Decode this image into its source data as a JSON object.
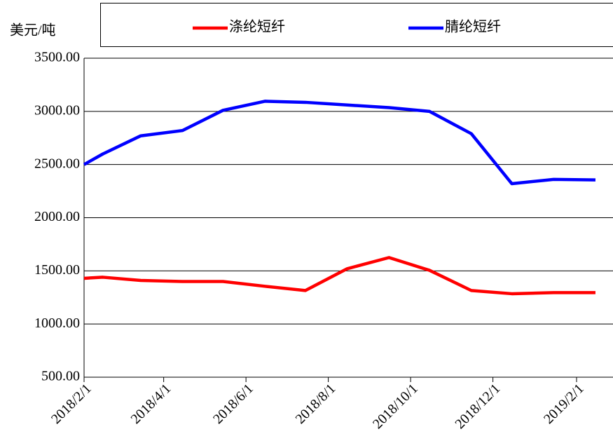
{
  "chart_data": {
    "type": "line",
    "y_label": "美元/吨",
    "x": [
      "2018/2/1",
      "2018/2/15",
      "2018/3/15",
      "2018/4/15",
      "2018/5/15",
      "2018/6/15",
      "2018/7/15",
      "2018/8/15",
      "2018/9/15",
      "2018/10/15",
      "2018/11/15",
      "2018/12/15",
      "2019/1/15",
      "2019/2/15"
    ],
    "series": [
      {
        "name": "涤纶短纤",
        "color": "#ff0000",
        "values": [
          1430,
          1440,
          1410,
          1400,
          1400,
          1355,
          1315,
          1520,
          1625,
          1505,
          1315,
          1285,
          1295,
          1295
        ]
      },
      {
        "name": "腈纶短纤",
        "color": "#0000ff",
        "values": [
          2500,
          2600,
          2770,
          2820,
          3010,
          3095,
          3085,
          3060,
          3035,
          3000,
          2790,
          2320,
          2360,
          2355
        ]
      }
    ],
    "xlim": [
      "2018/2/1",
      "2019/2/28"
    ],
    "xticks": [
      "2018/2/1",
      "2018/4/1",
      "2018/6/1",
      "2018/8/1",
      "2018/10/1",
      "2018/12/1",
      "2019/2/1"
    ],
    "ylim": [
      500,
      3500
    ],
    "yticks": [
      {
        "value": 500,
        "label": "500.00"
      },
      {
        "value": 1000,
        "label": "1000.00"
      },
      {
        "value": 1500,
        "label": "1500.00"
      },
      {
        "value": 2000,
        "label": "2000.00"
      },
      {
        "value": 2500,
        "label": "2500.00"
      },
      {
        "value": 3000,
        "label": "3000.00"
      },
      {
        "value": 3500,
        "label": "3500.00"
      }
    ],
    "grid": true,
    "legend": "top"
  }
}
